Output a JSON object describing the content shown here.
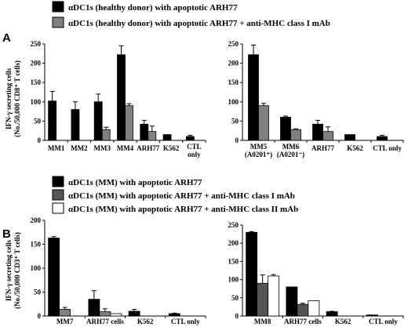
{
  "panels": [
    {
      "label": "A",
      "ylabel_line1": "IFN-γ secreting cells",
      "ylabel_line2": "(No./50,000 CD8⁺ T cells)",
      "legend": [
        {
          "text": "αDC1s (healthy donor) with apoptotic ARH77",
          "color": "#000000"
        },
        {
          "text": "αDC1s (healthy donor) with apoptotic ARH77 + anti-MHC class I mAb",
          "color": "#808080"
        }
      ]
    },
    {
      "label": "B",
      "ylabel_line1": "IFN-γ secreting cells",
      "ylabel_line2": "(No./50,000 CD3⁺ T cells)",
      "legend": [
        {
          "text": "αDC1s (MM) with apoptotic ARH77",
          "color": "#000000"
        },
        {
          "text": "αDC1s (MM) with apoptotic ARH77 + anti-MHC class I mAb",
          "color": "#555555"
        },
        {
          "text": "αDC1s (MM) with apoptotic ARH77 + anti-MHC class II mAb",
          "color": "#ffffff"
        }
      ]
    }
  ],
  "chart_data": [
    {
      "type": "bar",
      "panel": "A",
      "ylim": [
        0,
        250
      ],
      "yticks": [
        0,
        50,
        100,
        150,
        200,
        250
      ],
      "categories": [
        [
          "MM1"
        ],
        [
          "MM2"
        ],
        [
          "MM3"
        ],
        [
          "MM4"
        ],
        [
          "ARH77"
        ],
        [
          "K562"
        ],
        [
          "CTL",
          "only"
        ]
      ],
      "series": [
        {
          "name": "αDC1s (healthy donor) with apoptotic ARH77",
          "color": "#000000",
          "values": [
            102,
            80,
            100,
            222,
            42,
            15,
            10
          ],
          "errors": [
            25,
            20,
            20,
            23,
            10,
            0,
            3
          ]
        },
        {
          "name": "αDC1s (healthy donor) with apoptotic ARH77 + anti-MHC class I mAb",
          "color": "#808080",
          "values": [
            null,
            null,
            28,
            90,
            23,
            null,
            null
          ],
          "errors": [
            0,
            0,
            6,
            5,
            14,
            0,
            0
          ]
        }
      ]
    },
    {
      "type": "bar",
      "panel": "A",
      "ylim": [
        0,
        250
      ],
      "yticks": [
        0,
        50,
        100,
        150,
        200,
        250
      ],
      "categories": [
        [
          "MM5",
          "(A0201⁺)"
        ],
        [
          "MM6",
          "(A0201⁻)"
        ],
        [
          "ARH77"
        ],
        [
          "K562"
        ],
        [
          "CTL only"
        ]
      ],
      "series": [
        {
          "name": "αDC1s (healthy donor) with apoptotic ARH77",
          "color": "#000000",
          "values": [
            222,
            60,
            42,
            15,
            10
          ],
          "errors": [
            25,
            3,
            10,
            0,
            3
          ]
        },
        {
          "name": "αDC1s (healthy donor) with apoptotic ARH77 + anti-MHC class I mAb",
          "color": "#808080",
          "values": [
            90,
            28,
            23,
            null,
            null
          ],
          "errors": [
            6,
            2,
            12,
            0,
            0
          ]
        }
      ]
    },
    {
      "type": "bar",
      "panel": "B",
      "ylim": [
        0,
        200
      ],
      "yticks": [
        0,
        50,
        100,
        150,
        200
      ],
      "categories": [
        [
          "MM7"
        ],
        [
          "ARH77 cells"
        ],
        [
          "K562"
        ],
        [
          "CTL only"
        ]
      ],
      "series": [
        {
          "name": "αDC1s (MM) with apoptotic ARH77",
          "color": "#000000",
          "values": [
            163,
            35,
            10,
            5
          ],
          "errors": [
            3,
            18,
            4,
            1
          ]
        },
        {
          "name": "αDC1s (MM) with apoptotic ARH77 + anti-MHC class I mAb",
          "color": "#808080",
          "values": [
            14,
            9,
            null,
            null
          ],
          "errors": [
            4,
            6,
            0,
            0
          ]
        },
        {
          "name": "αDC1s (MM) with apoptotic ARH77 + anti-MHC class II mAb",
          "color": "#ffffff",
          "values": [
            null,
            5,
            null,
            null
          ],
          "errors": [
            0,
            0,
            0,
            0
          ]
        }
      ]
    },
    {
      "type": "bar",
      "panel": "B",
      "ylim": [
        0,
        250
      ],
      "yticks": [
        0,
        50,
        100,
        150,
        200,
        250
      ],
      "categories": [
        [
          "MM8"
        ],
        [
          "ARH77 cells"
        ],
        [
          "K562"
        ],
        [
          "CTL only"
        ]
      ],
      "series": [
        {
          "name": "αDC1s (MM) with apoptotic ARH77",
          "color": "#000000",
          "values": [
            230,
            80,
            12,
            3
          ],
          "errors": [
            2,
            0,
            1,
            0
          ]
        },
        {
          "name": "αDC1s (MM) with apoptotic ARH77 + anti-MHC class I mAb",
          "color": "#555555",
          "values": [
            90,
            32,
            null,
            null
          ],
          "errors": [
            23,
            3,
            0,
            0
          ]
        },
        {
          "name": "αDC1s (MM) with apoptotic ARH77 + anti-MHC class II mAb",
          "color": "#ffffff",
          "values": [
            110,
            42,
            null,
            null
          ],
          "errors": [
            4,
            0,
            0,
            0
          ]
        }
      ]
    }
  ]
}
